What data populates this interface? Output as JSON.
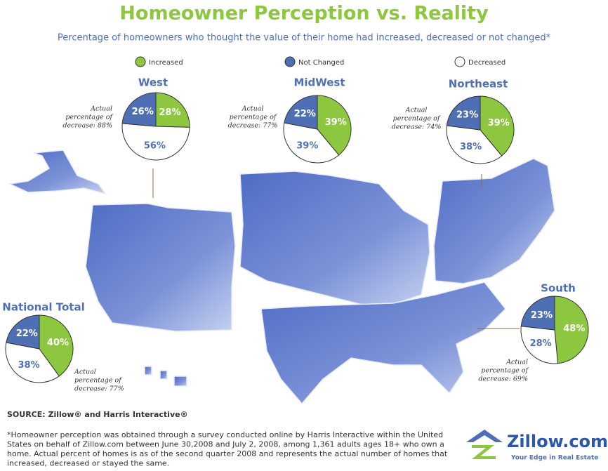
{
  "title": "Homeowner Perception vs. Reality",
  "subtitle": "Percentage of homeowners who thought the value of their home had increased, decreased or not changed*",
  "legend": [
    {
      "name": "Increased",
      "color": "#8dc63f"
    },
    {
      "name": "Not Changed",
      "color": "#4f6fb5"
    },
    {
      "name": "Decreased",
      "color": "#ffffff"
    }
  ],
  "chart_data": [
    {
      "type": "pie",
      "title": "West",
      "values": [
        28,
        26,
        56
      ],
      "value_labels": [
        "28%",
        "26%",
        "56%"
      ],
      "annotation": [
        "Actual",
        "percentage of",
        "decrease: 88%"
      ]
    },
    {
      "type": "pie",
      "title": "MidWest",
      "values": [
        39,
        22,
        39
      ],
      "value_labels": [
        "39%",
        "22%",
        "39%"
      ],
      "annotation": [
        "Actual",
        "percentage of",
        "decrease: 77%"
      ]
    },
    {
      "type": "pie",
      "title": "Northeast",
      "values": [
        39,
        23,
        38
      ],
      "value_labels": [
        "39%",
        "23%",
        "38%"
      ],
      "annotation": [
        "Actual",
        "percentage of",
        "decrease: 74%"
      ]
    },
    {
      "type": "pie",
      "title": "South",
      "values": [
        48,
        23,
        28
      ],
      "value_labels": [
        "48%",
        "23%",
        "28%"
      ],
      "annotation": [
        "Actual",
        "percentage of",
        "decrease: 69%"
      ]
    },
    {
      "type": "pie",
      "title": "National Total",
      "values": [
        40,
        22,
        38
      ],
      "value_labels": [
        "40%",
        "22%",
        "38%"
      ],
      "annotation": [
        "Actual",
        "percentage of",
        "decrease: 77%"
      ]
    }
  ],
  "source": "SOURCE: Zillow® and Harris Interactive®",
  "footnote": [
    "*Homeowner perception was obtained through a survey conducted online by Harris Interactive within the United",
    "States on behalf of Zillow.com between June 30,2008 and July 2, 2008, among 1,361 adults ages 18+ who own a",
    "home. Actual percent of homes is as of the second quarter 2008 and represents the actual number of homes that",
    "increased, decreased or stayed the same."
  ],
  "logo": {
    "name": "Zillow.com",
    "tagline": "Your Edge in Real Estate"
  }
}
